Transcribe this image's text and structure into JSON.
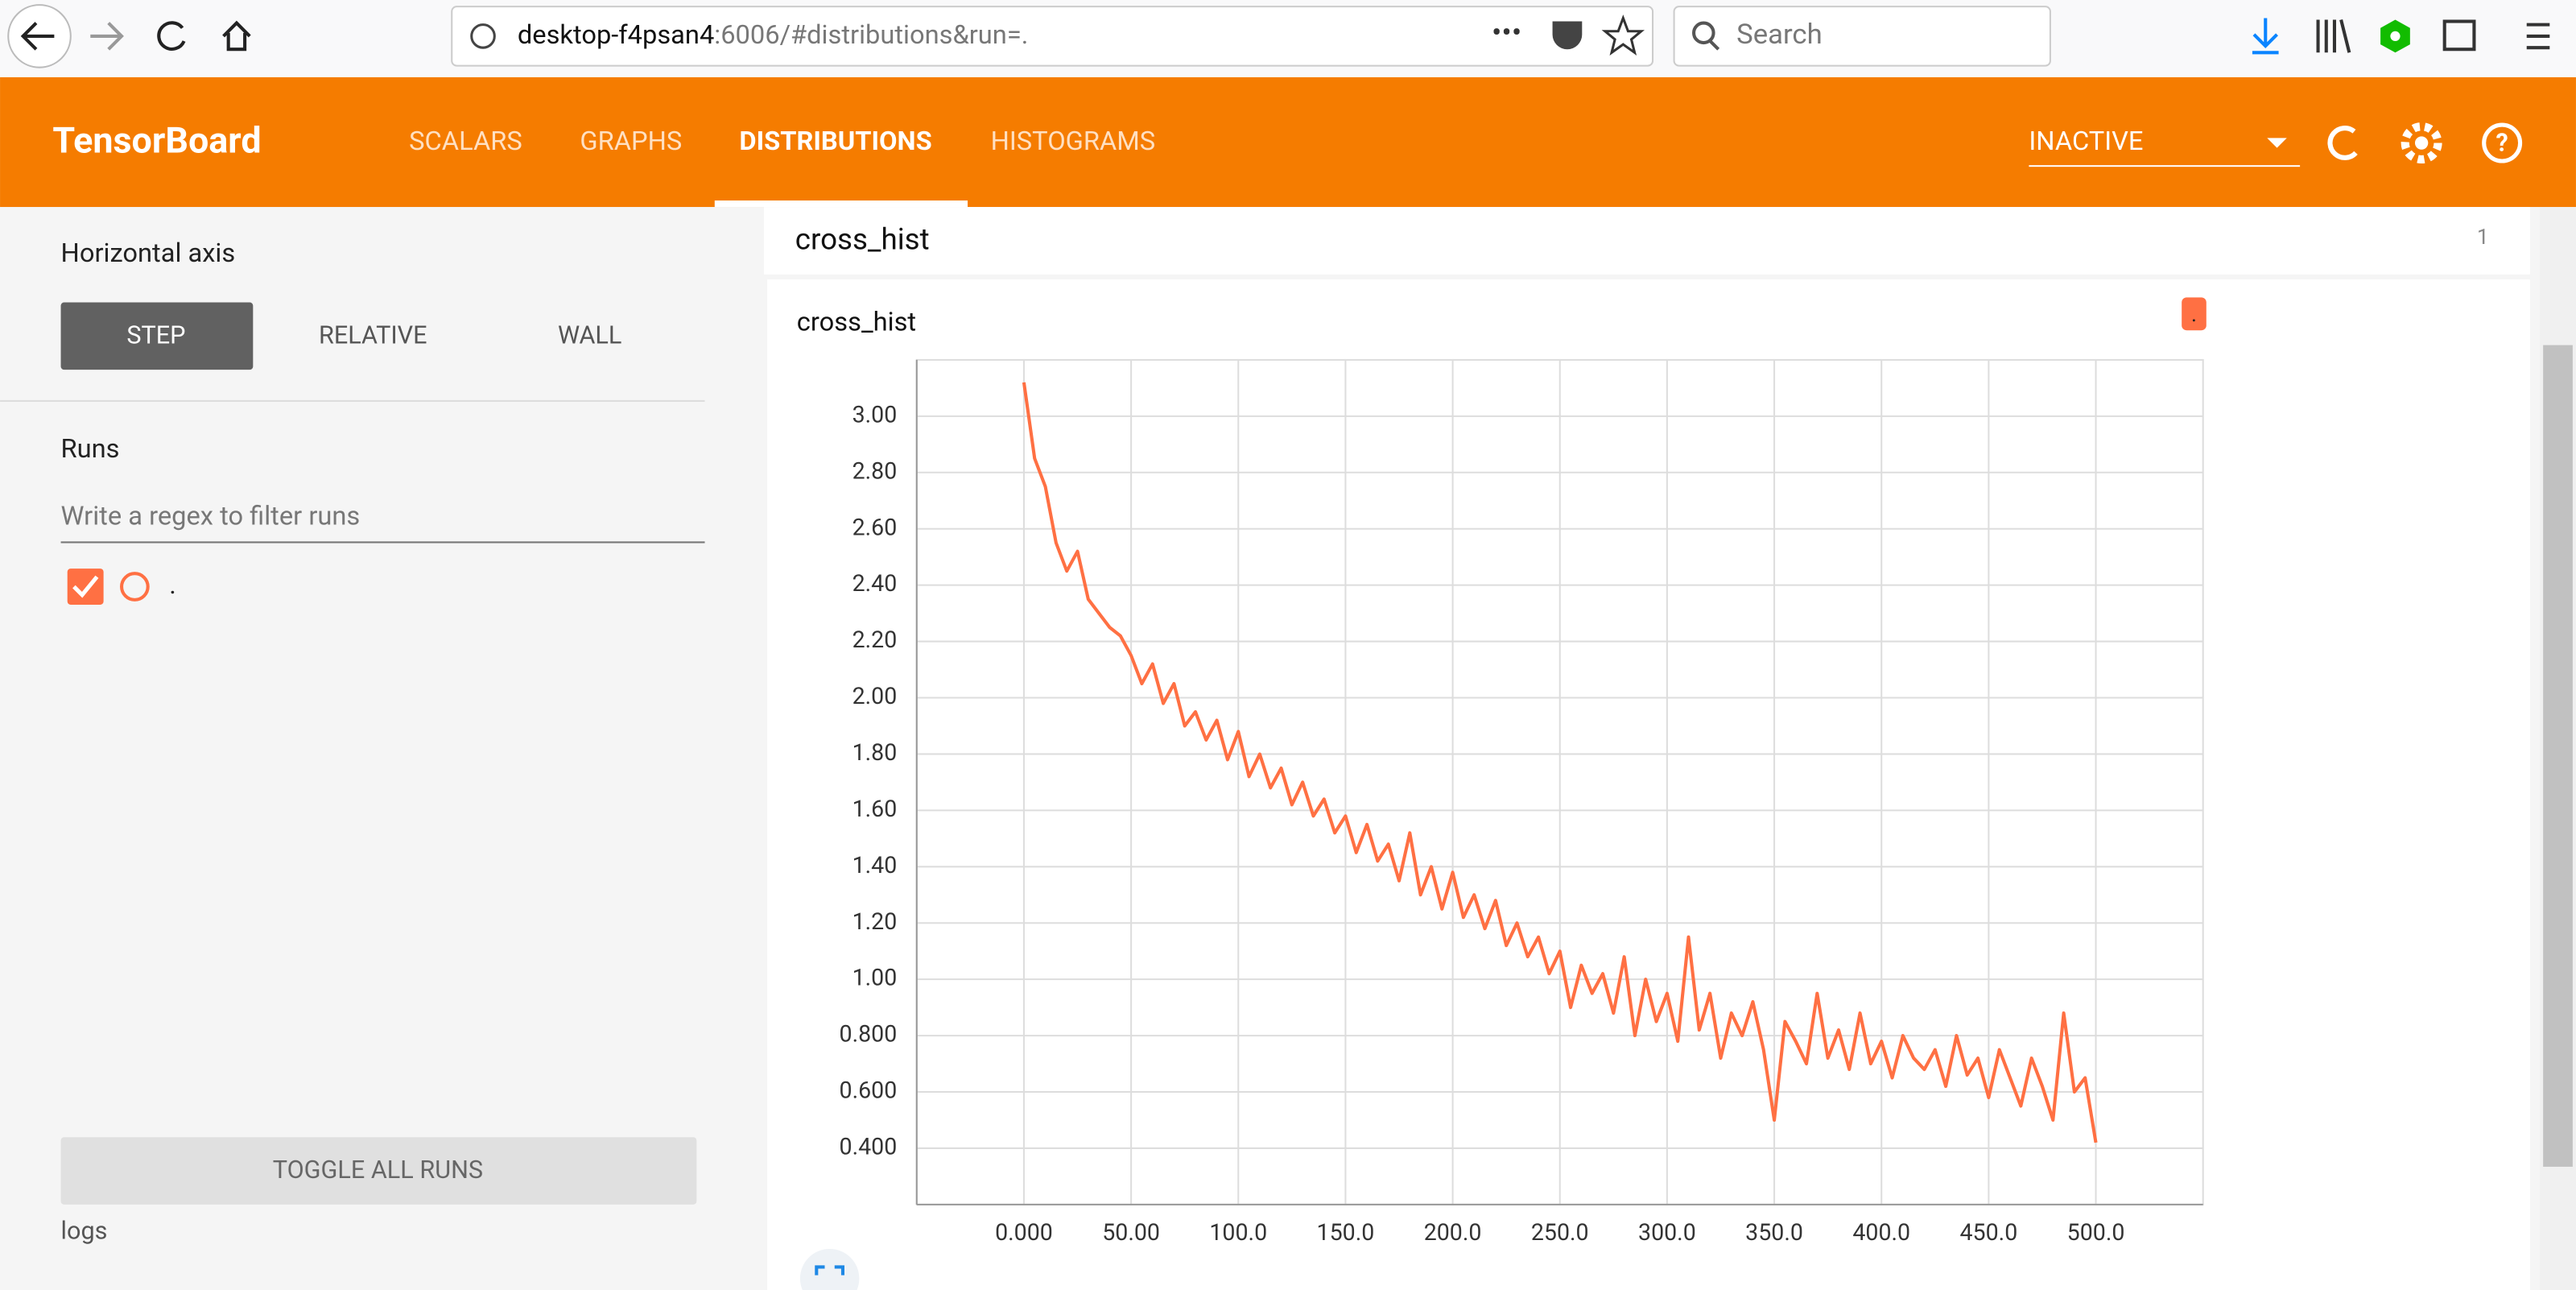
{
  "browser": {
    "url_host": "desktop-f4psan4",
    "url_rest": ":6006/#distributions&run=.",
    "search": "Search"
  },
  "header": {
    "title": "TensorBoard",
    "tabs": [
      "SCALARS",
      "GRAPHS",
      "DISTRIBUTIONS",
      "HISTOGRAMS"
    ],
    "status": "INACTIVE"
  },
  "sidebar": {
    "horizontal_axis": "Horizontal axis",
    "axis_options": [
      "STEP",
      "RELATIVE",
      "WALL"
    ],
    "runs_label": "Runs",
    "filter_placeholder": "Write a regex to filter runs",
    "runs": [
      "."
    ],
    "toggle": "TOGGLE ALL RUNS",
    "logdir": "logs"
  },
  "card": {
    "title": "cross_hist",
    "count": "1"
  },
  "chart_data": {
    "type": "line",
    "title": "cross_hist",
    "x": [
      0,
      5,
      10,
      15,
      20,
      25,
      30,
      35,
      40,
      45,
      50,
      55,
      60,
      65,
      70,
      75,
      80,
      85,
      90,
      95,
      100,
      105,
      110,
      115,
      120,
      125,
      130,
      135,
      140,
      145,
      150,
      155,
      160,
      165,
      170,
      175,
      180,
      185,
      190,
      195,
      200,
      205,
      210,
      215,
      220,
      225,
      230,
      235,
      240,
      245,
      250,
      255,
      260,
      265,
      270,
      275,
      280,
      285,
      290,
      295,
      300,
      305,
      310,
      315,
      320,
      325,
      330,
      335,
      340,
      345,
      350,
      355,
      360,
      365,
      370,
      375,
      380,
      385,
      390,
      395,
      400,
      405,
      410,
      415,
      420,
      425,
      430,
      435,
      440,
      445,
      450,
      455,
      460,
      465,
      470,
      475,
      480,
      485,
      490,
      495,
      500
    ],
    "series": [
      {
        "name": ".",
        "color": "#ff7043",
        "values": [
          3.12,
          2.85,
          2.75,
          2.55,
          2.45,
          2.52,
          2.35,
          2.3,
          2.25,
          2.22,
          2.15,
          2.05,
          2.12,
          1.98,
          2.05,
          1.9,
          1.95,
          1.85,
          1.92,
          1.78,
          1.88,
          1.72,
          1.8,
          1.68,
          1.75,
          1.62,
          1.7,
          1.58,
          1.64,
          1.52,
          1.58,
          1.45,
          1.55,
          1.42,
          1.48,
          1.35,
          1.52,
          1.3,
          1.4,
          1.25,
          1.38,
          1.22,
          1.3,
          1.18,
          1.28,
          1.12,
          1.2,
          1.08,
          1.15,
          1.02,
          1.1,
          0.9,
          1.05,
          0.95,
          1.02,
          0.88,
          1.08,
          0.8,
          1.0,
          0.85,
          0.95,
          0.78,
          1.15,
          0.82,
          0.95,
          0.72,
          0.88,
          0.8,
          0.92,
          0.75,
          0.5,
          0.85,
          0.78,
          0.7,
          0.95,
          0.72,
          0.82,
          0.68,
          0.88,
          0.7,
          0.78,
          0.65,
          0.8,
          0.72,
          0.68,
          0.75,
          0.62,
          0.8,
          0.66,
          0.72,
          0.58,
          0.75,
          0.65,
          0.55,
          0.72,
          0.62,
          0.5,
          0.88,
          0.6,
          0.65,
          0.42
        ]
      }
    ],
    "xlim": [
      -50,
      550
    ],
    "ylim": [
      0.2,
      3.2
    ],
    "xticks": [
      {
        "value": 0,
        "label": "0.000"
      },
      {
        "value": 50,
        "label": "50.00"
      },
      {
        "value": 100,
        "label": "100.0"
      },
      {
        "value": 150,
        "label": "150.0"
      },
      {
        "value": 200,
        "label": "200.0"
      },
      {
        "value": 250,
        "label": "250.0"
      },
      {
        "value": 300,
        "label": "300.0"
      },
      {
        "value": 350,
        "label": "350.0"
      },
      {
        "value": 400,
        "label": "400.0"
      },
      {
        "value": 450,
        "label": "450.0"
      },
      {
        "value": 500,
        "label": "500.0"
      }
    ],
    "yticks": [
      {
        "value": 0.4,
        "label": "0.400"
      },
      {
        "value": 0.6,
        "label": "0.600"
      },
      {
        "value": 0.8,
        "label": "0.800"
      },
      {
        "value": 1,
        "label": "1.00"
      },
      {
        "value": 1.2,
        "label": "1.20"
      },
      {
        "value": 1.4,
        "label": "1.40"
      },
      {
        "value": 1.6,
        "label": "1.60"
      },
      {
        "value": 1.8,
        "label": "1.80"
      },
      {
        "value": 2,
        "label": "2.00"
      },
      {
        "value": 2.2,
        "label": "2.20"
      },
      {
        "value": 2.4,
        "label": "2.40"
      },
      {
        "value": 2.6,
        "label": "2.60"
      },
      {
        "value": 2.8,
        "label": "2.80"
      },
      {
        "value": 3,
        "label": "3.00"
      }
    ],
    "grid": true
  }
}
